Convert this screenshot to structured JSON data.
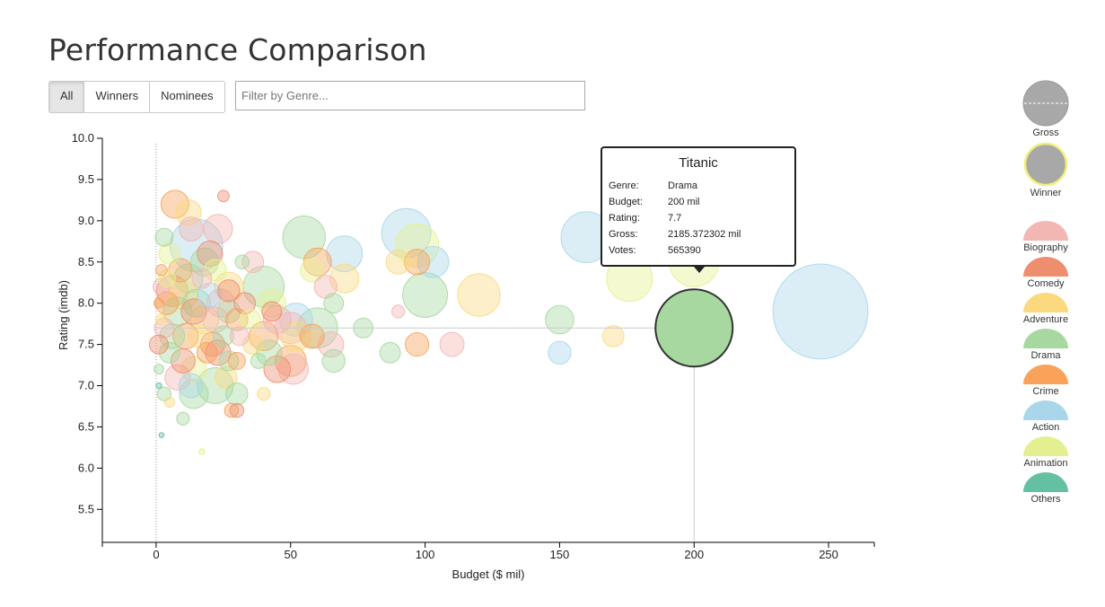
{
  "page": {
    "title": "Performance Comparison",
    "filter_buttons": [
      {
        "label": "All",
        "active": true
      },
      {
        "label": "Winners",
        "active": false
      },
      {
        "label": "Nominees",
        "active": false
      }
    ],
    "genre_filter": {
      "value": "",
      "placeholder": "Filter by Genre..."
    }
  },
  "tooltip": {
    "title": "Titanic",
    "rows": [
      {
        "key": "Genre:",
        "value": "Drama"
      },
      {
        "key": "Budget:",
        "value": "200 mil"
      },
      {
        "key": "Rating:",
        "value": "7.7"
      },
      {
        "key": "Gross:",
        "value": "2185.372302 mil"
      },
      {
        "key": "Votes:",
        "value": "565390"
      }
    ]
  },
  "legend": {
    "size_label": "Gross",
    "winner_label": "Winner",
    "winner_stroke": "#f0f07a",
    "genres": [
      {
        "name": "Biography",
        "color": "#f2b6b3"
      },
      {
        "name": "Comedy",
        "color": "#ef8e6f"
      },
      {
        "name": "Adventure",
        "color": "#fbd97f"
      },
      {
        "name": "Drama",
        "color": "#a7d8a0"
      },
      {
        "name": "Crime",
        "color": "#f9a25a"
      },
      {
        "name": "Action",
        "color": "#a9d6ea"
      },
      {
        "name": "Animation",
        "color": "#e4f08f"
      },
      {
        "name": "Others",
        "color": "#64c0a2"
      }
    ]
  },
  "chart_data": {
    "type": "scatter",
    "xlabel": "Budget ($ mil)",
    "ylabel": "Rating (imdb)",
    "xlim": [
      -20,
      267
    ],
    "ylim": [
      5.1,
      10.0
    ],
    "xticks": [
      0,
      50,
      100,
      150,
      200,
      250
    ],
    "yticks": [
      "10.0",
      "9.5",
      "9.0",
      "8.5",
      "8.0",
      "7.5",
      "7.0",
      "6.5",
      "6.0",
      "5.5"
    ],
    "size_encodes": "Gross",
    "highlight": {
      "name": "Titanic",
      "x": 200,
      "y": 7.7,
      "genre": "Drama",
      "gross": 2185.372302
    },
    "points": [
      {
        "x": 247,
        "y": 7.9,
        "g": "Action",
        "gross": 2800
      },
      {
        "x": 160,
        "y": 8.8,
        "g": "Action",
        "gross": 800
      },
      {
        "x": 176,
        "y": 8.3,
        "g": "Animation",
        "gross": 650
      },
      {
        "x": 200,
        "y": 8.5,
        "g": "Animation",
        "gross": 760
      },
      {
        "x": 170,
        "y": 7.6,
        "g": "Adventure",
        "gross": 140
      },
      {
        "x": 150,
        "y": 7.8,
        "g": "Drama",
        "gross": 250
      },
      {
        "x": 150,
        "y": 7.4,
        "g": "Action",
        "gross": 160
      },
      {
        "x": 120,
        "y": 8.1,
        "g": "Adventure",
        "gross": 560
      },
      {
        "x": 100,
        "y": 8.1,
        "g": "Drama",
        "gross": 620
      },
      {
        "x": 93,
        "y": 8.85,
        "g": "Action",
        "gross": 750
      },
      {
        "x": 97,
        "y": 8.7,
        "g": "Animation",
        "gross": 580
      },
      {
        "x": 103,
        "y": 8.5,
        "g": "Action",
        "gross": 300
      },
      {
        "x": 90,
        "y": 8.5,
        "g": "Adventure",
        "gross": 180
      },
      {
        "x": 97,
        "y": 8.5,
        "g": "Crime",
        "gross": 200
      },
      {
        "x": 110,
        "y": 7.5,
        "g": "Biography",
        "gross": 180
      },
      {
        "x": 97,
        "y": 7.5,
        "g": "Crime",
        "gross": 170
      },
      {
        "x": 87,
        "y": 7.4,
        "g": "Drama",
        "gross": 130
      },
      {
        "x": 90,
        "y": 7.9,
        "g": "Biography",
        "gross": 50
      },
      {
        "x": 70,
        "y": 8.6,
        "g": "Action",
        "gross": 400
      },
      {
        "x": 70,
        "y": 8.3,
        "g": "Adventure",
        "gross": 260
      },
      {
        "x": 55,
        "y": 8.8,
        "g": "Drama",
        "gross": 560
      },
      {
        "x": 60,
        "y": 8.5,
        "g": "Crime",
        "gross": 240
      },
      {
        "x": 58,
        "y": 8.4,
        "g": "Animation",
        "gross": 170
      },
      {
        "x": 63,
        "y": 8.2,
        "g": "Biography",
        "gross": 160
      },
      {
        "x": 66,
        "y": 8.0,
        "g": "Drama",
        "gross": 120
      },
      {
        "x": 77,
        "y": 7.7,
        "g": "Drama",
        "gross": 120
      },
      {
        "x": 65,
        "y": 7.5,
        "g": "Biography",
        "gross": 200
      },
      {
        "x": 66,
        "y": 7.3,
        "g": "Drama",
        "gross": 160
      },
      {
        "x": 60,
        "y": 7.7,
        "g": "Drama",
        "gross": 500
      },
      {
        "x": 52,
        "y": 7.8,
        "g": "Action",
        "gross": 340
      },
      {
        "x": 50,
        "y": 7.7,
        "g": "Biography",
        "gross": 300
      },
      {
        "x": 52,
        "y": 7.6,
        "g": "Adventure",
        "gross": 280
      },
      {
        "x": 58,
        "y": 7.6,
        "g": "Crime",
        "gross": 180
      },
      {
        "x": 40,
        "y": 8.2,
        "g": "Drama",
        "gross": 520
      },
      {
        "x": 43,
        "y": 8.0,
        "g": "Animation",
        "gross": 240
      },
      {
        "x": 45,
        "y": 7.8,
        "g": "Biography",
        "gross": 240
      },
      {
        "x": 40,
        "y": 7.6,
        "g": "Crime",
        "gross": 260
      },
      {
        "x": 42,
        "y": 7.4,
        "g": "Drama",
        "gross": 200
      },
      {
        "x": 50,
        "y": 7.3,
        "g": "Crime",
        "gross": 300
      },
      {
        "x": 51,
        "y": 7.2,
        "g": "Biography",
        "gross": 280
      },
      {
        "x": 45,
        "y": 7.2,
        "g": "Comedy",
        "gross": 220
      },
      {
        "x": 40,
        "y": 6.9,
        "g": "Adventure",
        "gross": 50
      },
      {
        "x": 32,
        "y": 8.5,
        "g": "Drama",
        "gross": 60
      },
      {
        "x": 36,
        "y": 8.5,
        "g": "Biography",
        "gross": 140
      },
      {
        "x": 23,
        "y": 8.9,
        "g": "Biography",
        "gross": 260
      },
      {
        "x": 15,
        "y": 8.7,
        "g": "Action",
        "gross": 860
      },
      {
        "x": 20,
        "y": 8.6,
        "g": "Comedy",
        "gross": 200
      },
      {
        "x": 18,
        "y": 8.5,
        "g": "Drama",
        "gross": 240
      },
      {
        "x": 22,
        "y": 8.4,
        "g": "Animation",
        "gross": 150
      },
      {
        "x": 27,
        "y": 8.2,
        "g": "Adventure",
        "gross": 260
      },
      {
        "x": 27,
        "y": 8.15,
        "g": "Comedy",
        "gross": 150
      },
      {
        "x": 25,
        "y": 9.3,
        "g": "Comedy",
        "gross": 40
      },
      {
        "x": 7,
        "y": 9.2,
        "g": "Crime",
        "gross": 240
      },
      {
        "x": 12,
        "y": 9.1,
        "g": "Adventure",
        "gross": 200
      },
      {
        "x": 13,
        "y": 8.9,
        "g": "Biography",
        "gross": 180
      },
      {
        "x": 3,
        "y": 8.8,
        "g": "Drama",
        "gross": 100
      },
      {
        "x": 5,
        "y": 8.6,
        "g": "Animation",
        "gross": 140
      },
      {
        "x": 9,
        "y": 8.4,
        "g": "Crime",
        "gross": 170
      },
      {
        "x": 12,
        "y": 8.3,
        "g": "Drama",
        "gross": 260
      },
      {
        "x": 2,
        "y": 8.2,
        "g": "Biography",
        "gross": 90
      },
      {
        "x": 6,
        "y": 8.15,
        "g": "Comedy",
        "gross": 300
      },
      {
        "x": 10,
        "y": 8.1,
        "g": "Adventure",
        "gross": 260
      },
      {
        "x": 15,
        "y": 8.0,
        "g": "Drama",
        "gross": 240
      },
      {
        "x": 20,
        "y": 8.1,
        "g": "Action",
        "gross": 180
      },
      {
        "x": 24,
        "y": 8.0,
        "g": "Biography",
        "gross": 240
      },
      {
        "x": 4,
        "y": 8.0,
        "g": "Crime",
        "gross": 160
      },
      {
        "x": 8,
        "y": 7.9,
        "g": "Drama",
        "gross": 260
      },
      {
        "x": 14,
        "y": 7.9,
        "g": "Comedy",
        "gross": 200
      },
      {
        "x": 18,
        "y": 7.8,
        "g": "Adventure",
        "gross": 250
      },
      {
        "x": 22,
        "y": 7.8,
        "g": "Biography",
        "gross": 200
      },
      {
        "x": 27,
        "y": 7.9,
        "g": "Drama",
        "gross": 160
      },
      {
        "x": 30,
        "y": 7.8,
        "g": "Crime",
        "gross": 150
      },
      {
        "x": 35,
        "y": 7.8,
        "g": "Animation",
        "gross": 130
      },
      {
        "x": 3,
        "y": 7.7,
        "g": "Biography",
        "gross": 120
      },
      {
        "x": 6,
        "y": 7.6,
        "g": "Drama",
        "gross": 190
      },
      {
        "x": 11,
        "y": 7.6,
        "g": "Crime",
        "gross": 200
      },
      {
        "x": 16,
        "y": 7.6,
        "g": "Adventure",
        "gross": 160
      },
      {
        "x": 21,
        "y": 7.5,
        "g": "Comedy",
        "gross": 180
      },
      {
        "x": 25,
        "y": 7.6,
        "g": "Drama",
        "gross": 130
      },
      {
        "x": 31,
        "y": 7.6,
        "g": "Biography",
        "gross": 110
      },
      {
        "x": 1,
        "y": 7.5,
        "g": "Comedy",
        "gross": 110
      },
      {
        "x": 5,
        "y": 7.4,
        "g": "Drama",
        "gross": 130
      },
      {
        "x": 10,
        "y": 7.3,
        "g": "Comedy",
        "gross": 180
      },
      {
        "x": 14,
        "y": 7.2,
        "g": "Animation",
        "gross": 200
      },
      {
        "x": 19,
        "y": 7.4,
        "g": "Crime",
        "gross": 130
      },
      {
        "x": 23,
        "y": 7.4,
        "g": "Comedy",
        "gross": 200
      },
      {
        "x": 27,
        "y": 7.3,
        "g": "Drama",
        "gross": 120
      },
      {
        "x": 30,
        "y": 7.3,
        "g": "Crime",
        "gross": 90
      },
      {
        "x": 8,
        "y": 7.1,
        "g": "Biography",
        "gross": 200
      },
      {
        "x": 13,
        "y": 7.0,
        "g": "Action",
        "gross": 180
      },
      {
        "x": 22,
        "y": 7.0,
        "g": "Drama",
        "gross": 400
      },
      {
        "x": 26,
        "y": 7.1,
        "g": "Adventure",
        "gross": 150
      },
      {
        "x": 30,
        "y": 6.9,
        "g": "Drama",
        "gross": 150
      },
      {
        "x": 14,
        "y": 6.9,
        "g": "Drama",
        "gross": 260
      },
      {
        "x": 3,
        "y": 6.9,
        "g": "Drama",
        "gross": 60
      },
      {
        "x": 5,
        "y": 6.8,
        "g": "Adventure",
        "gross": 30
      },
      {
        "x": 28,
        "y": 6.7,
        "g": "Crime",
        "gross": 60
      },
      {
        "x": 30,
        "y": 6.7,
        "g": "Comedy",
        "gross": 60
      },
      {
        "x": 10,
        "y": 6.6,
        "g": "Drama",
        "gross": 50
      },
      {
        "x": 17,
        "y": 6.2,
        "g": "Animation",
        "gross": 10
      },
      {
        "x": 2,
        "y": 6.4,
        "g": "Others",
        "gross": 8
      },
      {
        "x": 1,
        "y": 7.0,
        "g": "Others",
        "gross": 10
      },
      {
        "x": 2,
        "y": 8.4,
        "g": "Crime",
        "gross": 40
      },
      {
        "x": 1,
        "y": 8.0,
        "g": "Crime",
        "gross": 30
      },
      {
        "x": 2,
        "y": 7.8,
        "g": "Adventure",
        "gross": 40
      },
      {
        "x": 1,
        "y": 7.2,
        "g": "Drama",
        "gross": 30
      },
      {
        "x": 4,
        "y": 8.3,
        "g": "Animation",
        "gross": 90
      },
      {
        "x": 36,
        "y": 7.5,
        "g": "Adventure",
        "gross": 120
      },
      {
        "x": 43,
        "y": 7.9,
        "g": "Comedy",
        "gross": 120
      },
      {
        "x": 38,
        "y": 7.3,
        "g": "Drama",
        "gross": 70
      },
      {
        "x": 33,
        "y": 8.0,
        "g": "Comedy",
        "gross": 140
      },
      {
        "x": 17,
        "y": 8.3,
        "g": "Biography",
        "gross": 120
      }
    ]
  }
}
